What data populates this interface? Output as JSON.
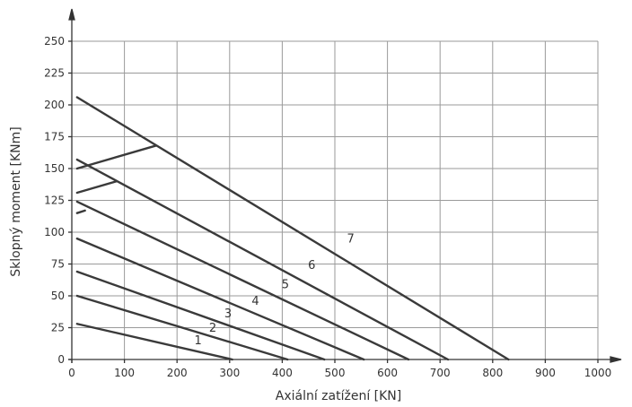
{
  "chart_data": {
    "type": "line",
    "xlabel": "Axiální zatížení [KN]",
    "ylabel": "Sklopný moment [KNm]",
    "xlim": [
      0,
      1000
    ],
    "ylim": [
      0,
      250
    ],
    "xticks": [
      0,
      100,
      200,
      300,
      400,
      500,
      600,
      700,
      800,
      900,
      1000
    ],
    "yticks": [
      0,
      25,
      50,
      75,
      100,
      125,
      150,
      175,
      200,
      225,
      250
    ],
    "grid": true,
    "series": [
      {
        "name": "1",
        "points": [
          [
            10,
            28
          ],
          [
            305,
            0
          ]
        ],
        "label_at": [
          240,
          12
        ]
      },
      {
        "name": "2",
        "points": [
          [
            10,
            50
          ],
          [
            410,
            0
          ]
        ],
        "label_at": [
          268,
          22
        ]
      },
      {
        "name": "3",
        "points": [
          [
            10,
            69
          ],
          [
            480,
            0
          ]
        ],
        "label_at": [
          297,
          33
        ]
      },
      {
        "name": "4",
        "points": [
          [
            10,
            95
          ],
          [
            555,
            0
          ]
        ],
        "label_at": [
          349,
          43
        ]
      },
      {
        "name": "5",
        "points": [
          [
            10,
            124
          ],
          [
            640,
            0
          ]
        ],
        "label_at": [
          406,
          56
        ]
      },
      {
        "name": "6",
        "points": [
          [
            10,
            157
          ],
          [
            715,
            0
          ]
        ],
        "label_at": [
          456,
          71
        ]
      },
      {
        "name": "7",
        "points": [
          [
            10,
            206
          ],
          [
            830,
            0
          ]
        ],
        "label_at": [
          530,
          92
        ]
      }
    ],
    "extra_segments": [
      {
        "points": [
          [
            10,
            150
          ],
          [
            160,
            168
          ]
        ]
      },
      {
        "points": [
          [
            10,
            131
          ],
          [
            85,
            140
          ]
        ]
      },
      {
        "points": [
          [
            10,
            115
          ],
          [
            25,
            117
          ]
        ]
      }
    ]
  }
}
